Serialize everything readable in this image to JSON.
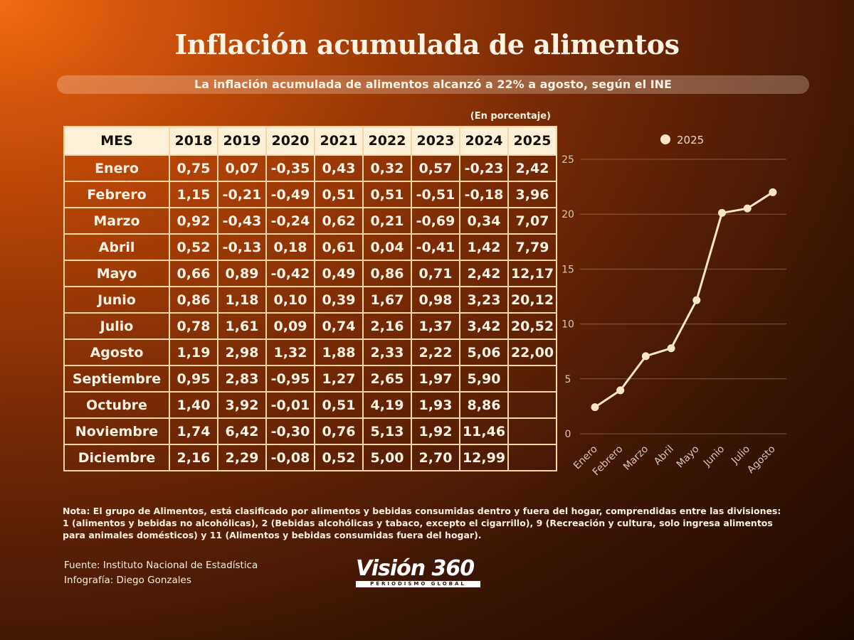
{
  "title": "Inflación acumulada de alimentos",
  "subtitle": "La inflación acumulada de alimentos alcanzó a 22% a agosto, según el INE",
  "unit_note": "(En porcentaje)",
  "table": {
    "header": [
      "MES",
      "2018",
      "2019",
      "2020",
      "2021",
      "2022",
      "2023",
      "2024",
      "2025"
    ],
    "rows": [
      [
        "Enero",
        "0,75",
        "0,07",
        "-0,35",
        "0,43",
        "0,32",
        "0,57",
        "-0,23",
        "2,42"
      ],
      [
        "Febrero",
        "1,15",
        "-0,21",
        "-0,49",
        "0,51",
        "0,51",
        "-0,51",
        "-0,18",
        "3,96"
      ],
      [
        "Marzo",
        "0,92",
        "-0,43",
        "-0,24",
        "0,62",
        "0,21",
        "-0,69",
        "0,34",
        "7,07"
      ],
      [
        "Abril",
        "0,52",
        "-0,13",
        "0,18",
        "0,61",
        "0,04",
        "-0,41",
        "1,42",
        "7,79"
      ],
      [
        "Mayo",
        "0,66",
        "0,89",
        "-0,42",
        "0,49",
        "0,86",
        "0,71",
        "2,42",
        "12,17"
      ],
      [
        "Junio",
        "0,86",
        "1,18",
        "0,10",
        "0,39",
        "1,67",
        "0,98",
        "3,23",
        "20,12"
      ],
      [
        "Julio",
        "0,78",
        "1,61",
        "0,09",
        "0,74",
        "2,16",
        "1,37",
        "3,42",
        "20,52"
      ],
      [
        "Agosto",
        "1,19",
        "2,98",
        "1,32",
        "1,88",
        "2,33",
        "2,22",
        "5,06",
        "22,00"
      ],
      [
        "Septiembre",
        "0,95",
        "2,83",
        "-0,95",
        "1,27",
        "2,65",
        "1,97",
        "5,90",
        ""
      ],
      [
        "Octubre",
        "1,40",
        "3,92",
        "-0,01",
        "0,51",
        "4,19",
        "1,93",
        "8,86",
        ""
      ],
      [
        "Noviembre",
        "1,74",
        "6,42",
        "-0,30",
        "0,76",
        "5,13",
        "1,92",
        "11,46",
        ""
      ],
      [
        "Diciembre",
        "2,16",
        "2,29",
        "-0,08",
        "0,52",
        "5,00",
        "2,70",
        "12,99",
        ""
      ]
    ]
  },
  "chart_data": {
    "type": "line",
    "x": [
      "Enero",
      "Febrero",
      "Marzo",
      "Abril",
      "Mayo",
      "Junio",
      "Julio",
      "Agosto"
    ],
    "series": [
      {
        "name": "2025",
        "values": [
          2.42,
          3.96,
          7.07,
          7.79,
          12.17,
          20.12,
          20.52,
          22.0
        ]
      }
    ],
    "ylim": [
      0,
      25
    ],
    "yticks": [
      0,
      5,
      10,
      15,
      20,
      25
    ],
    "grid": true,
    "legend": "top",
    "line_color": "#fbe6c6"
  },
  "note": "Nota: El grupo de Alimentos, está clasificado por alimentos y bebidas consumidas dentro y fuera del hogar, comprendidas entre las divisiones: 1 (alimentos y bebidas no alcohólicas), 2 (Bebidas alcohólicas y tabaco, excepto el cigarrillo), 9 (Recreación y cultura, solo ingresa alimentos para animales domésticos) y 11 (Alimentos y bebidas consumidas fuera del hogar).",
  "source": "Fuente: Instituto Nacional de Estadística",
  "infographic": "Infografía: Diego Gonzales",
  "logo": {
    "name": "Visión 360",
    "tagline": "PERIODISMO GLOBAL"
  }
}
